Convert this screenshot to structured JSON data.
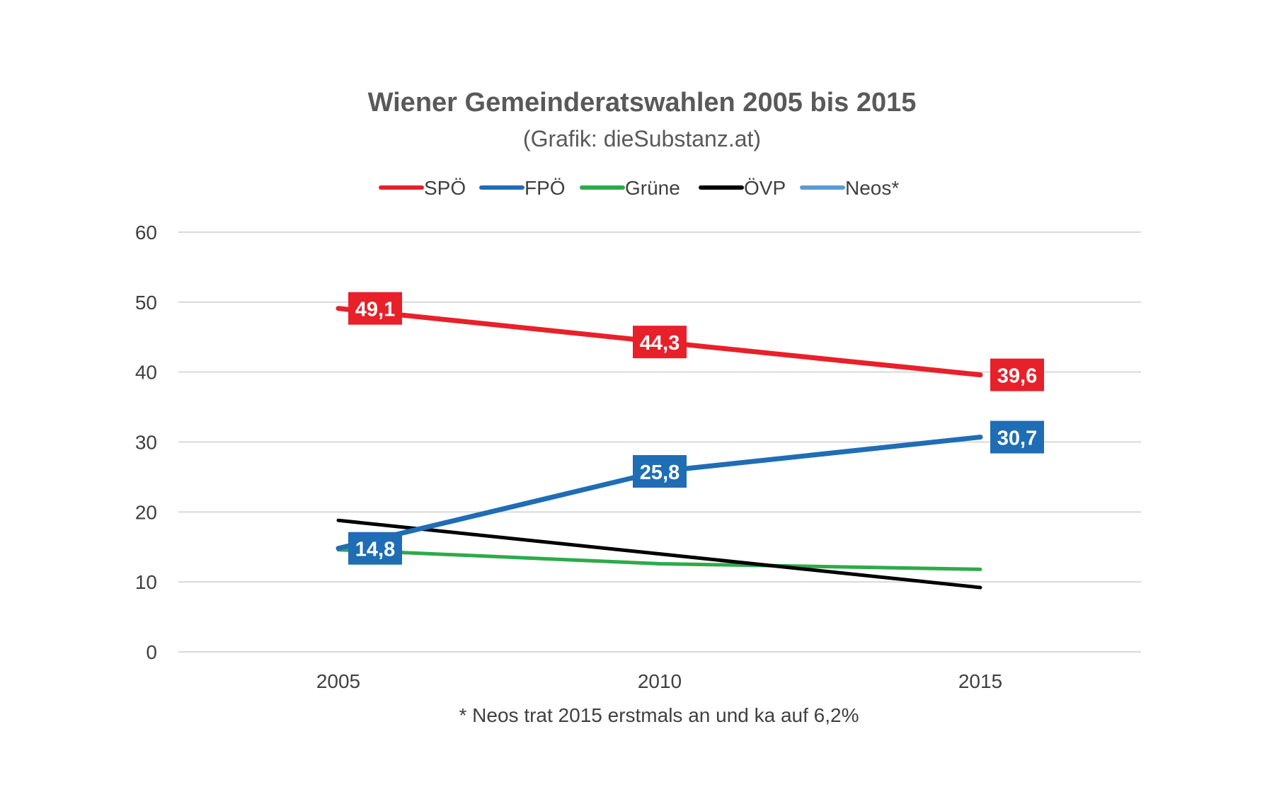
{
  "chart_data": {
    "type": "line",
    "title": "Wiener Gemeinderatswahlen 2005 bis 2015",
    "subtitle": "(Grafik: dieSubstanz.at)",
    "footnote": "* Neos trat 2015 erstmals an und ka auf 6,2%",
    "categories": [
      "2005",
      "2010",
      "2015"
    ],
    "ylim": [
      0,
      60
    ],
    "yticks": [
      "0",
      "10",
      "20",
      "30",
      "40",
      "50",
      "60"
    ],
    "grid": true,
    "legend_position": "top",
    "series": [
      {
        "name": "SPÖ",
        "color": "#e8202a",
        "values": [
          49.1,
          44.3,
          39.6
        ],
        "labels": [
          "49,1",
          "44,3",
          "39,6"
        ],
        "label_style": "boxed"
      },
      {
        "name": "FPÖ",
        "color": "#1f6db5",
        "values": [
          14.8,
          25.8,
          30.7
        ],
        "labels": [
          "14,8",
          "25,8",
          "30,7"
        ],
        "label_style": "boxed"
      },
      {
        "name": "Grüne",
        "color": "#2eaa4a",
        "values": [
          14.6,
          12.6,
          11.8
        ],
        "labels": [],
        "label_style": "none"
      },
      {
        "name": "ÖVP",
        "color": "#000000",
        "values": [
          18.8,
          14.0,
          9.2
        ],
        "labels": [],
        "label_style": "none"
      },
      {
        "name": "Neos*",
        "color": "#5b9bd5",
        "values": [
          null,
          null,
          null
        ],
        "labels": [],
        "label_style": "none"
      }
    ]
  }
}
